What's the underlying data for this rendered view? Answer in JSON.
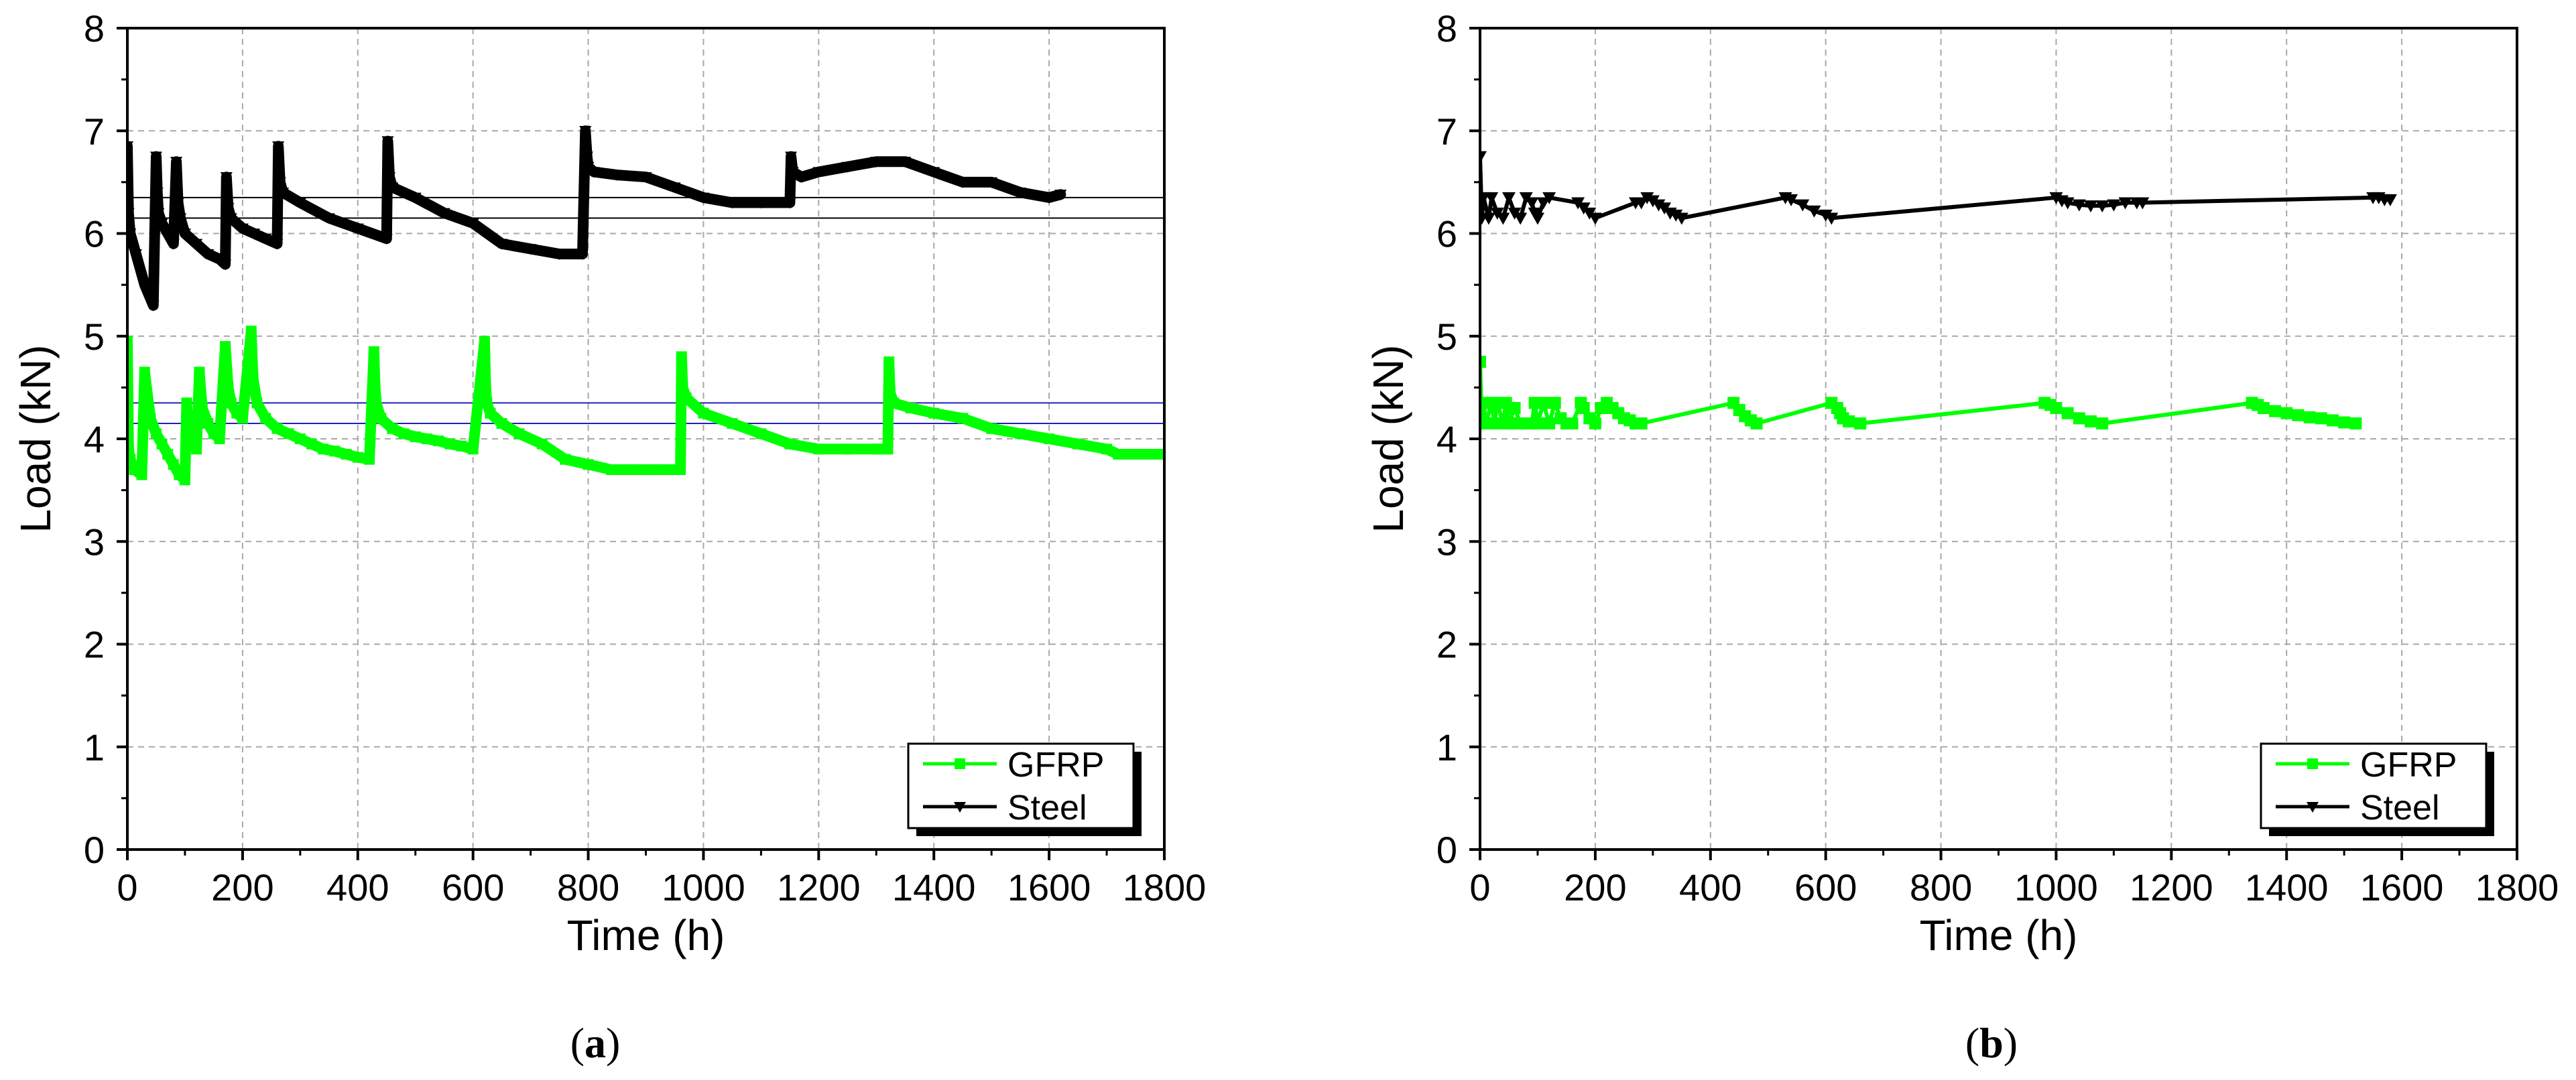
{
  "figure": {
    "panel_labels": [
      "a",
      "b"
    ]
  },
  "chart_data": [
    {
      "type": "line",
      "panel": "a",
      "title": "",
      "xlabel": "Time (h)",
      "ylabel": "Load (kN)",
      "xlim": [
        0,
        1800
      ],
      "ylim": [
        0,
        8
      ],
      "xticks": [
        0,
        200,
        400,
        600,
        800,
        1000,
        1200,
        1400,
        1600,
        1800
      ],
      "yticks": [
        0,
        1,
        2,
        3,
        4,
        5,
        6,
        7,
        8
      ],
      "grid": true,
      "legend_position": "bottom-right",
      "reference_lines": [
        {
          "y": 6.35,
          "color": "#000000"
        },
        {
          "y": 6.15,
          "color": "#000000"
        },
        {
          "y": 4.35,
          "color": "#2020c0"
        },
        {
          "y": 4.15,
          "color": "#2020c0"
        }
      ],
      "series": [
        {
          "name": "GFRP",
          "color": "#00ff00",
          "marker": "square",
          "style": "band",
          "x": [
            0,
            2,
            5,
            12,
            25,
            30,
            40,
            50,
            60,
            70,
            80,
            90,
            100,
            103,
            106,
            112,
            120,
            125,
            130,
            140,
            150,
            160,
            170,
            175,
            180,
            190,
            200,
            215,
            218,
            225,
            240,
            260,
            280,
            300,
            320,
            340,
            360,
            380,
            400,
            420,
            428,
            430,
            432,
            440,
            460,
            480,
            500,
            520,
            540,
            560,
            580,
            600,
            620,
            622,
            624,
            630,
            650,
            680,
            720,
            760,
            800,
            840,
            880,
            920,
            960,
            962,
            964,
            970,
            1000,
            1050,
            1100,
            1150,
            1200,
            1250,
            1300,
            1320,
            1322,
            1324,
            1330,
            1360,
            1400,
            1450,
            1500,
            1550,
            1600,
            1650,
            1700,
            1720,
            1750,
            1800
          ],
          "y": [
            4.95,
            3.9,
            3.8,
            3.7,
            3.65,
            4.65,
            4.2,
            4.05,
            3.95,
            3.85,
            3.75,
            3.65,
            3.6,
            4.35,
            4.05,
            3.95,
            3.9,
            4.65,
            4.3,
            4.15,
            4.05,
            4.0,
            4.9,
            4.5,
            4.35,
            4.25,
            4.2,
            5.05,
            4.6,
            4.35,
            4.2,
            4.1,
            4.05,
            4.0,
            3.95,
            3.9,
            3.88,
            3.85,
            3.82,
            3.8,
            4.85,
            4.5,
            4.35,
            4.2,
            4.1,
            4.05,
            4.02,
            4.0,
            3.98,
            3.95,
            3.93,
            3.9,
            4.95,
            4.5,
            4.35,
            4.25,
            4.15,
            4.05,
            3.95,
            3.8,
            3.75,
            3.7,
            3.7,
            3.7,
            3.7,
            4.8,
            4.5,
            4.4,
            4.25,
            4.15,
            4.05,
            3.95,
            3.9,
            3.9,
            3.9,
            3.9,
            4.75,
            4.45,
            4.35,
            4.3,
            4.25,
            4.2,
            4.1,
            4.05,
            4.0,
            3.95,
            3.9,
            3.85,
            3.85,
            3.85
          ]
        },
        {
          "name": "Steel",
          "color": "#000000",
          "marker": "triangle-down",
          "style": "band",
          "x": [
            0,
            2,
            5,
            15,
            30,
            45,
            50,
            52,
            54,
            60,
            70,
            80,
            85,
            88,
            92,
            100,
            120,
            140,
            160,
            170,
            172,
            175,
            180,
            200,
            220,
            240,
            260,
            262,
            265,
            270,
            300,
            350,
            400,
            450,
            452,
            455,
            460,
            500,
            550,
            600,
            650,
            700,
            750,
            790,
            795,
            798,
            800,
            810,
            850,
            900,
            950,
            1000,
            1050,
            1100,
            1150,
            1152,
            1155,
            1170,
            1200,
            1250,
            1300,
            1350,
            1400,
            1450,
            1500,
            1550,
            1600,
            1620
          ],
          "y": [
            6.85,
            6.2,
            6.0,
            5.8,
            5.5,
            5.3,
            6.75,
            6.4,
            6.2,
            6.1,
            6.0,
            5.9,
            6.7,
            6.3,
            6.15,
            6.0,
            5.9,
            5.8,
            5.75,
            5.7,
            6.55,
            6.25,
            6.15,
            6.05,
            6.0,
            5.95,
            5.9,
            6.85,
            6.5,
            6.4,
            6.3,
            6.15,
            6.05,
            5.95,
            6.9,
            6.55,
            6.45,
            6.35,
            6.2,
            6.1,
            5.9,
            5.85,
            5.8,
            5.8,
            7.0,
            6.75,
            6.65,
            6.6,
            6.57,
            6.55,
            6.45,
            6.35,
            6.3,
            6.3,
            6.3,
            6.75,
            6.6,
            6.55,
            6.6,
            6.65,
            6.7,
            6.7,
            6.6,
            6.5,
            6.5,
            6.4,
            6.35,
            6.38
          ]
        }
      ]
    },
    {
      "type": "line",
      "panel": "b",
      "title": "",
      "xlabel": "Time (h)",
      "ylabel": "Load (kN)",
      "xlim": [
        0,
        1800
      ],
      "ylim": [
        0,
        8
      ],
      "xticks": [
        0,
        200,
        400,
        600,
        800,
        1000,
        1200,
        1400,
        1600,
        1800
      ],
      "yticks": [
        0,
        1,
        2,
        3,
        4,
        5,
        6,
        7,
        8
      ],
      "grid": true,
      "legend_position": "bottom-right",
      "reference_lines": [],
      "series": [
        {
          "name": "GFRP",
          "color": "#00ff00",
          "marker": "square",
          "style": "line",
          "x": [
            0,
            3,
            6,
            10,
            20,
            25,
            30,
            40,
            45,
            50,
            60,
            70,
            90,
            95,
            100,
            110,
            120,
            130,
            140,
            150,
            160,
            175,
            180,
            190,
            200,
            210,
            220,
            230,
            240,
            250,
            260,
            270,
            280,
            440,
            450,
            460,
            470,
            480,
            610,
            620,
            625,
            630,
            640,
            660,
            980,
            990,
            1000,
            1020,
            1040,
            1060,
            1080,
            1340,
            1350,
            1360,
            1380,
            1400,
            1420,
            1440,
            1460,
            1480,
            1500,
            1520
          ],
          "y": [
            4.75,
            4.15,
            4.35,
            4.15,
            4.35,
            4.15,
            4.35,
            4.15,
            4.35,
            4.15,
            4.3,
            4.15,
            4.15,
            4.35,
            4.15,
            4.35,
            4.15,
            4.35,
            4.2,
            4.15,
            4.15,
            4.35,
            4.3,
            4.2,
            4.15,
            4.3,
            4.35,
            4.3,
            4.25,
            4.2,
            4.18,
            4.15,
            4.15,
            4.35,
            4.28,
            4.22,
            4.18,
            4.15,
            4.35,
            4.3,
            4.25,
            4.2,
            4.17,
            4.15,
            4.35,
            4.33,
            4.3,
            4.25,
            4.2,
            4.17,
            4.15,
            4.35,
            4.33,
            4.3,
            4.27,
            4.25,
            4.23,
            4.21,
            4.2,
            4.18,
            4.16,
            4.15
          ]
        },
        {
          "name": "Steel",
          "color": "#000000",
          "marker": "triangle-down",
          "style": "line",
          "x": [
            0,
            3,
            6,
            15,
            20,
            30,
            40,
            50,
            60,
            70,
            80,
            90,
            95,
            100,
            110,
            120,
            170,
            180,
            190,
            200,
            270,
            280,
            290,
            300,
            310,
            320,
            330,
            340,
            350,
            530,
            540,
            560,
            580,
            600,
            610,
            1000,
            1010,
            1020,
            1040,
            1060,
            1080,
            1100,
            1120,
            1140,
            1150,
            1550,
            1560,
            1570,
            1580
          ],
          "y": [
            6.75,
            6.15,
            6.35,
            6.15,
            6.35,
            6.2,
            6.15,
            6.35,
            6.2,
            6.15,
            6.35,
            6.3,
            6.2,
            6.15,
            6.3,
            6.35,
            6.3,
            6.25,
            6.2,
            6.15,
            6.3,
            6.3,
            6.35,
            6.32,
            6.28,
            6.25,
            6.2,
            6.18,
            6.15,
            6.35,
            6.33,
            6.28,
            6.22,
            6.18,
            6.15,
            6.35,
            6.32,
            6.3,
            6.28,
            6.27,
            6.27,
            6.28,
            6.3,
            6.3,
            6.3,
            6.35,
            6.35,
            6.33,
            6.33
          ]
        }
      ]
    }
  ]
}
